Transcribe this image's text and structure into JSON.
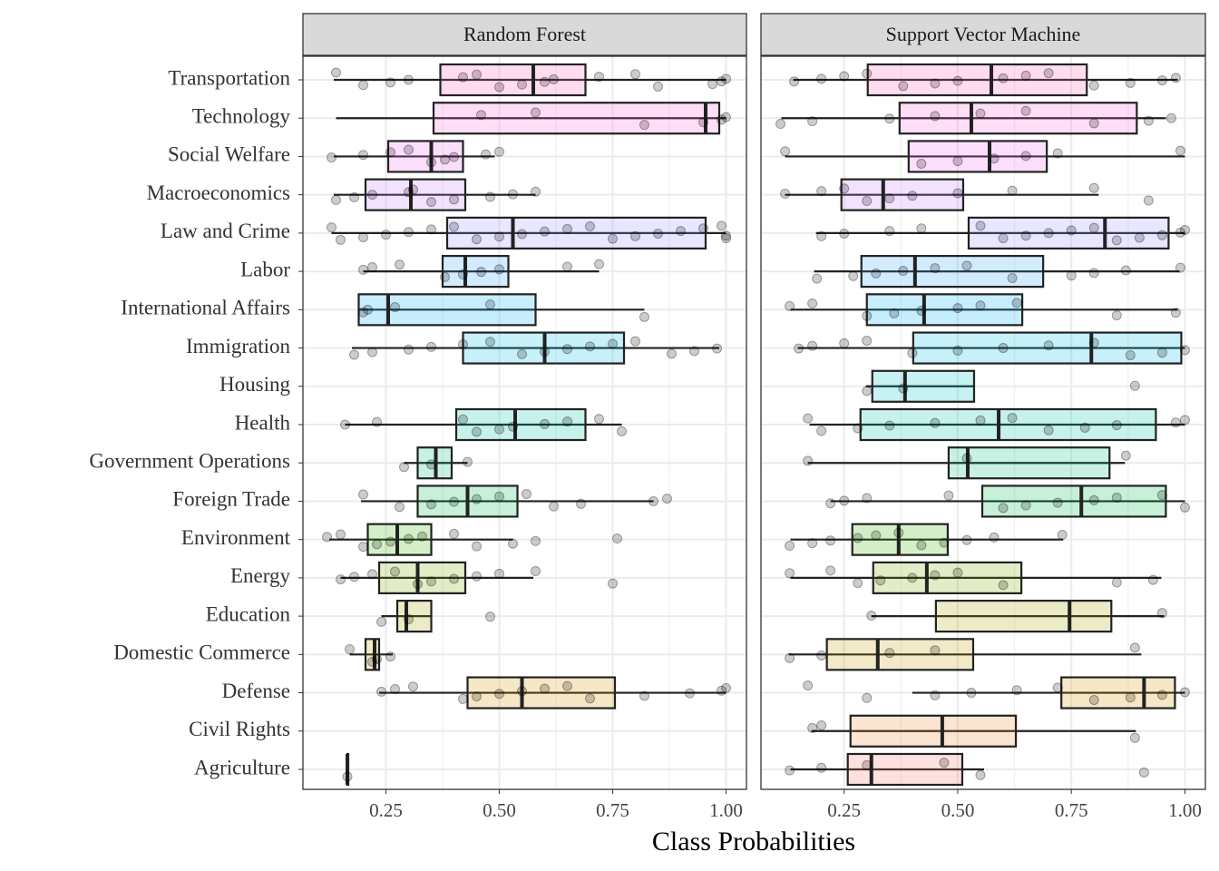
{
  "chart_data": {
    "type": "box",
    "xlabel": "Class Probabilities",
    "categories": [
      "Transportation",
      "Technology",
      "Social Welfare",
      "Macroeconomics",
      "Law and Crime",
      "Labor",
      "International Affairs",
      "Immigration",
      "Housing",
      "Health",
      "Government Operations",
      "Foreign Trade",
      "Environment",
      "Energy",
      "Education",
      "Domestic Commerce",
      "Defense",
      "Civil Rights",
      "Agriculture"
    ],
    "colors": [
      "#FF62BC",
      "#FA62DB",
      "#E76BF3",
      "#C77CFF",
      "#9590FF",
      "#35A2FF",
      "#00B0F6",
      "#00BAE0",
      "#00BFC4",
      "#00C1A3",
      "#00BF7D",
      "#00BB4E",
      "#39B600",
      "#7CAE00",
      "#A3A500",
      "#C09B00",
      "#D89000",
      "#EA8331",
      "#F8766D"
    ],
    "xlim": [
      0.067,
      1.045
    ],
    "xticks": [
      {
        "value": 0.25,
        "label": "0.25"
      },
      {
        "value": 0.5,
        "label": "0.50"
      },
      {
        "value": 0.75,
        "label": "0.75"
      },
      {
        "value": 1,
        "label": "1.00"
      }
    ],
    "grid": true,
    "panels": [
      {
        "title": "Random Forest",
        "boxes": [
          {
            "low": 0.135,
            "q1": 0.37,
            "median": 0.575,
            "q3": 0.69,
            "high": 1.0,
            "points": [
              0.14,
              0.2,
              0.26,
              0.3,
              0.42,
              0.45,
              0.5,
              0.55,
              0.6,
              0.62,
              0.72,
              0.8,
              0.85,
              0.97,
              0.99,
              1.0
            ]
          },
          {
            "low": 0.14,
            "q1": 0.355,
            "median": 0.955,
            "q3": 0.985,
            "high": 1.0,
            "points": [
              0.46,
              0.58,
              0.82,
              0.95,
              0.99,
              1.0
            ]
          },
          {
            "low": 0.135,
            "q1": 0.255,
            "median": 0.35,
            "q3": 0.42,
            "high": 0.49,
            "points": [
              0.13,
              0.2,
              0.26,
              0.3,
              0.35,
              0.38,
              0.4,
              0.47,
              0.5
            ]
          },
          {
            "low": 0.135,
            "q1": 0.205,
            "median": 0.305,
            "q3": 0.425,
            "high": 0.58,
            "points": [
              0.14,
              0.18,
              0.22,
              0.3,
              0.31,
              0.35,
              0.4,
              0.48,
              0.53,
              0.58
            ]
          },
          {
            "low": 0.13,
            "q1": 0.385,
            "median": 0.53,
            "q3": 0.955,
            "high": 1.0,
            "points": [
              0.13,
              0.15,
              0.2,
              0.25,
              0.3,
              0.35,
              0.4,
              0.45,
              0.5,
              0.55,
              0.6,
              0.65,
              0.7,
              0.75,
              0.8,
              0.85,
              0.9,
              0.95,
              0.99,
              1.0,
              1.0
            ]
          },
          {
            "low": 0.2,
            "q1": 0.375,
            "median": 0.425,
            "q3": 0.52,
            "high": 0.72,
            "points": [
              0.2,
              0.22,
              0.28,
              0.38,
              0.42,
              0.46,
              0.5,
              0.65,
              0.72
            ]
          },
          {
            "low": 0.19,
            "q1": 0.19,
            "median": 0.255,
            "q3": 0.58,
            "high": 0.82,
            "points": [
              0.2,
              0.21,
              0.27,
              0.48,
              0.82
            ]
          },
          {
            "low": 0.175,
            "q1": 0.42,
            "median": 0.6,
            "q3": 0.775,
            "high": 0.985,
            "points": [
              0.18,
              0.22,
              0.3,
              0.35,
              0.42,
              0.48,
              0.55,
              0.6,
              0.65,
              0.7,
              0.75,
              0.8,
              0.88,
              0.93,
              0.98
            ]
          },
          null,
          {
            "low": 0.16,
            "q1": 0.405,
            "median": 0.535,
            "q3": 0.69,
            "high": 0.77,
            "points": [
              0.16,
              0.23,
              0.42,
              0.45,
              0.5,
              0.53,
              0.6,
              0.65,
              0.72,
              0.77
            ]
          },
          {
            "low": 0.29,
            "q1": 0.32,
            "median": 0.36,
            "q3": 0.395,
            "high": 0.43,
            "points": [
              0.29,
              0.35,
              0.43
            ]
          },
          {
            "low": 0.195,
            "q1": 0.32,
            "median": 0.43,
            "q3": 0.54,
            "high": 0.84,
            "points": [
              0.2,
              0.28,
              0.35,
              0.4,
              0.45,
              0.5,
              0.56,
              0.62,
              0.68,
              0.84,
              0.87
            ]
          },
          {
            "low": 0.125,
            "q1": 0.21,
            "median": 0.275,
            "q3": 0.35,
            "high": 0.53,
            "points": [
              0.12,
              0.15,
              0.2,
              0.23,
              0.26,
              0.3,
              0.33,
              0.4,
              0.45,
              0.53,
              0.58,
              0.76
            ]
          },
          {
            "low": 0.15,
            "q1": 0.235,
            "median": 0.32,
            "q3": 0.425,
            "high": 0.575,
            "points": [
              0.15,
              0.18,
              0.22,
              0.27,
              0.32,
              0.35,
              0.4,
              0.45,
              0.5,
              0.58,
              0.75
            ]
          },
          {
            "low": 0.24,
            "q1": 0.275,
            "median": 0.295,
            "q3": 0.35,
            "high": 0.35,
            "points": [
              0.24,
              0.3,
              0.48
            ]
          },
          {
            "low": 0.17,
            "q1": 0.205,
            "median": 0.225,
            "q3": 0.235,
            "high": 0.265,
            "points": [
              0.17,
              0.22,
              0.23,
              0.26
            ]
          },
          {
            "low": 0.235,
            "q1": 0.43,
            "median": 0.55,
            "q3": 0.755,
            "high": 1.0,
            "points": [
              0.24,
              0.27,
              0.31,
              0.42,
              0.45,
              0.5,
              0.55,
              0.6,
              0.65,
              0.7,
              0.82,
              0.92,
              0.99,
              1.0
            ]
          },
          null,
          {
            "low": 0.165,
            "q1": 0.165,
            "median": 0.165,
            "q3": 0.165,
            "high": 0.165,
            "points": [
              0.165
            ]
          }
        ]
      },
      {
        "title": "Support Vector Machine",
        "boxes": [
          {
            "low": 0.138,
            "q1": 0.302,
            "median": 0.574,
            "q3": 0.784,
            "high": 0.984,
            "points": [
              0.14,
              0.2,
              0.25,
              0.3,
              0.38,
              0.45,
              0.5,
              0.6,
              0.65,
              0.7,
              0.8,
              0.88,
              0.95,
              0.98
            ]
          },
          {
            "low": 0.112,
            "q1": 0.372,
            "median": 0.53,
            "q3": 0.894,
            "high": 0.958,
            "points": [
              0.11,
              0.18,
              0.35,
              0.45,
              0.55,
              0.65,
              0.8,
              0.92,
              0.97
            ]
          },
          {
            "low": 0.12,
            "q1": 0.392,
            "median": 0.57,
            "q3": 0.696,
            "high": 1.0,
            "points": [
              0.12,
              0.42,
              0.5,
              0.58,
              0.65,
              0.72,
              0.99
            ]
          },
          {
            "low": 0.12,
            "q1": 0.244,
            "median": 0.336,
            "q3": 0.512,
            "high": 0.81,
            "points": [
              0.12,
              0.2,
              0.25,
              0.3,
              0.35,
              0.4,
              0.5,
              0.62,
              0.8,
              0.92
            ]
          },
          {
            "low": 0.188,
            "q1": 0.524,
            "median": 0.824,
            "q3": 0.964,
            "high": 1.0,
            "points": [
              0.2,
              0.25,
              0.35,
              0.42,
              0.55,
              0.6,
              0.65,
              0.7,
              0.75,
              0.8,
              0.85,
              0.9,
              0.95,
              0.99,
              1.0
            ]
          },
          {
            "low": 0.184,
            "q1": 0.288,
            "median": 0.406,
            "q3": 0.688,
            "high": 0.988,
            "points": [
              0.19,
              0.27,
              0.32,
              0.38,
              0.45,
              0.52,
              0.62,
              0.75,
              0.8,
              0.87,
              0.99
            ]
          },
          {
            "low": 0.132,
            "q1": 0.3,
            "median": 0.426,
            "q3": 0.642,
            "high": 0.984,
            "points": [
              0.13,
              0.18,
              0.3,
              0.36,
              0.42,
              0.5,
              0.55,
              0.63,
              0.85,
              0.98
            ]
          },
          {
            "low": 0.148,
            "q1": 0.402,
            "median": 0.794,
            "q3": 0.992,
            "high": 1.0,
            "points": [
              0.15,
              0.18,
              0.25,
              0.3,
              0.4,
              0.5,
              0.6,
              0.7,
              0.8,
              0.88,
              0.95,
              1.0
            ]
          },
          {
            "low": 0.298,
            "q1": 0.312,
            "median": 0.384,
            "q3": 0.536,
            "high": 0.536,
            "points": [
              0.3,
              0.38,
              0.89
            ]
          },
          {
            "low": 0.174,
            "q1": 0.286,
            "median": 0.59,
            "q3": 0.936,
            "high": 1.0,
            "points": [
              0.17,
              0.2,
              0.28,
              0.35,
              0.45,
              0.55,
              0.62,
              0.7,
              0.78,
              0.85,
              0.98,
              1.0
            ]
          },
          {
            "low": 0.17,
            "q1": 0.48,
            "median": 0.522,
            "q3": 0.834,
            "high": 0.868,
            "points": [
              0.17,
              0.52,
              0.87
            ]
          },
          {
            "low": 0.22,
            "q1": 0.554,
            "median": 0.772,
            "q3": 0.958,
            "high": 1.0,
            "points": [
              0.22,
              0.25,
              0.3,
              0.48,
              0.6,
              0.65,
              0.72,
              0.8,
              0.85,
              0.95,
              1.0
            ]
          },
          {
            "low": 0.132,
            "q1": 0.268,
            "median": 0.37,
            "q3": 0.478,
            "high": 0.732,
            "points": [
              0.13,
              0.18,
              0.22,
              0.28,
              0.32,
              0.37,
              0.42,
              0.47,
              0.52,
              0.58,
              0.73
            ]
          },
          {
            "low": 0.132,
            "q1": 0.314,
            "median": 0.432,
            "q3": 0.64,
            "high": 0.948,
            "points": [
              0.13,
              0.22,
              0.28,
              0.33,
              0.4,
              0.45,
              0.5,
              0.6,
              0.85,
              0.93
            ]
          },
          {
            "low": 0.31,
            "q1": 0.452,
            "median": 0.746,
            "q3": 0.838,
            "high": 0.954,
            "points": [
              0.31,
              0.95
            ]
          },
          {
            "low": 0.128,
            "q1": 0.212,
            "median": 0.324,
            "q3": 0.534,
            "high": 0.904,
            "points": [
              0.13,
              0.2,
              0.35,
              0.45,
              0.89
            ]
          },
          {
            "low": 0.4,
            "q1": 0.728,
            "median": 0.91,
            "q3": 0.978,
            "high": 1.0,
            "points": [
              0.17,
              0.3,
              0.45,
              0.53,
              0.63,
              0.72,
              0.8,
              0.88,
              0.95,
              1.0
            ]
          },
          {
            "low": 0.178,
            "q1": 0.264,
            "median": 0.466,
            "q3": 0.628,
            "high": 0.892,
            "points": [
              0.18,
              0.2,
              0.89
            ]
          },
          {
            "low": 0.132,
            "q1": 0.258,
            "median": 0.31,
            "q3": 0.51,
            "high": 0.558,
            "points": [
              0.13,
              0.2,
              0.3,
              0.47,
              0.55,
              0.91
            ]
          }
        ]
      }
    ]
  }
}
